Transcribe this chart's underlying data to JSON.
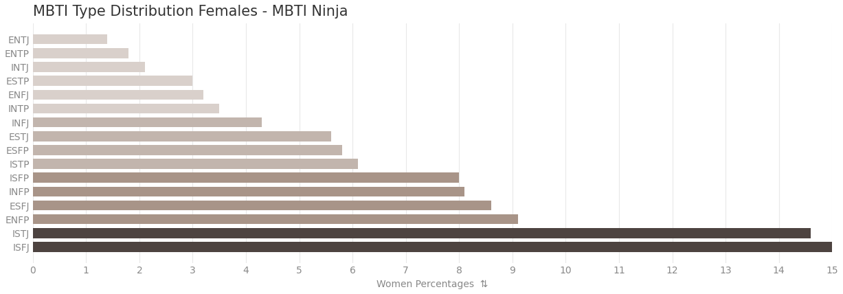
{
  "title": "MBTI Type Distribution Females - MBTI Ninja",
  "categories": [
    "ENTJ",
    "ENTP",
    "INTJ",
    "ESTP",
    "ENFJ",
    "INTP",
    "INFJ",
    "ESTJ",
    "ESFP",
    "ISTP",
    "ISFP",
    "INFP",
    "ESFJ",
    "ENFP",
    "ISTJ",
    "ISFJ"
  ],
  "values": [
    1.4,
    1.8,
    2.1,
    3.0,
    3.2,
    3.5,
    4.3,
    5.6,
    5.8,
    6.1,
    8.0,
    8.1,
    8.6,
    9.1,
    14.6,
    15.0
  ],
  "bar_colors": [
    "#d9d0cb",
    "#d9d0cb",
    "#d9d0cb",
    "#d9d0cb",
    "#d9d0cb",
    "#d9d0cb",
    "#c2b5ad",
    "#c2b5ad",
    "#c2b5ad",
    "#c2b5ad",
    "#a89488",
    "#a89488",
    "#a89488",
    "#a89488",
    "#4d4340",
    "#4d4340"
  ],
  "xlabel": "Women Percentages",
  "xlim": [
    0,
    15
  ],
  "xticks": [
    0,
    1,
    2,
    3,
    4,
    5,
    6,
    7,
    8,
    9,
    10,
    11,
    12,
    13,
    14,
    15
  ],
  "background_color": "#ffffff",
  "title_fontsize": 15,
  "tick_label_fontsize": 10,
  "xlabel_fontsize": 10,
  "grid_color": "#e8e8e8"
}
